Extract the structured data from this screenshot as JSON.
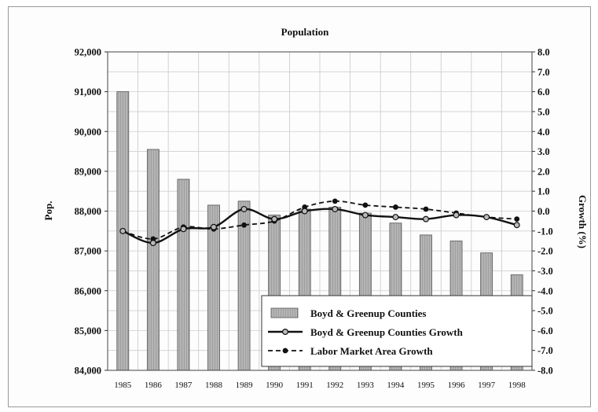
{
  "chart_data": {
    "type": "bar",
    "title": "Population",
    "ylabel": "Pop.",
    "y2label": "Growth (%)",
    "xlabel": "",
    "categories": [
      "1985",
      "1986",
      "1987",
      "1988",
      "1989",
      "1990",
      "1991",
      "1992",
      "1993",
      "1994",
      "1995",
      "1996",
      "1997",
      "1998"
    ],
    "ylim": [
      84000,
      92000
    ],
    "y_ticks": [
      "84,000",
      "85,000",
      "86,000",
      "87,000",
      "88,000",
      "89,000",
      "90,000",
      "91,000",
      "92,000"
    ],
    "y2lim": [
      -8.0,
      8.0
    ],
    "y2_ticks": [
      "-8.0",
      "-7.0",
      "-6.0",
      "-5.0",
      "-4.0",
      "-3.0",
      "-2.0",
      "-1.0",
      "0.0",
      "1.0",
      "2.0",
      "3.0",
      "4.0",
      "5.0",
      "6.0",
      "7.0",
      "8.0"
    ],
    "grid": true,
    "legend_position": "bottom-right",
    "series": [
      {
        "name": "Boyd & Greenup Counties",
        "type": "bar",
        "axis": "left",
        "values": [
          91000,
          89550,
          88800,
          88150,
          88250,
          87900,
          88050,
          88100,
          87950,
          87700,
          87400,
          87250,
          86950,
          86400
        ]
      },
      {
        "name": "Boyd & Greenup Counties Growth",
        "type": "line",
        "axis": "right",
        "style": "solid",
        "values": [
          -1.0,
          -1.6,
          -0.9,
          -0.8,
          0.1,
          -0.4,
          0.0,
          0.1,
          -0.2,
          -0.3,
          -0.4,
          -0.2,
          -0.3,
          -0.7
        ]
      },
      {
        "name": "Labor Market Area Growth",
        "type": "line",
        "axis": "right",
        "style": "dashed",
        "values": [
          -1.0,
          -1.4,
          -0.8,
          -0.9,
          -0.7,
          -0.5,
          0.2,
          0.5,
          0.3,
          0.2,
          0.1,
          -0.1,
          -0.3,
          -0.4
        ]
      }
    ]
  }
}
